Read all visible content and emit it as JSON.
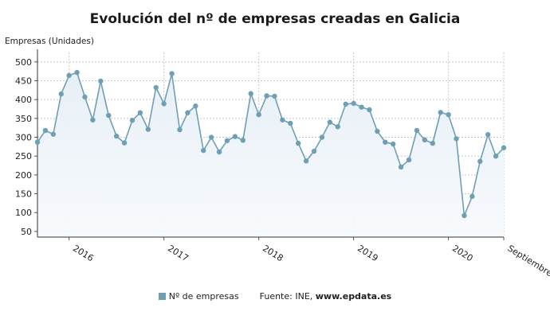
{
  "chart_data": {
    "type": "line",
    "title": "Evolución del nº de empresas creadas en Galicia",
    "ylabel": "Empresas (Unidades)",
    "xlabel": "",
    "ylim": [
      35,
      525
    ],
    "yticks": [
      50,
      100,
      150,
      200,
      250,
      300,
      350,
      400,
      450,
      500
    ],
    "x_tick_labels": [
      "2016",
      "2017",
      "2018",
      "2019",
      "2020",
      "Septiembre"
    ],
    "grid": true,
    "legend_position": "bottom",
    "series": [
      {
        "name": "Nº de empresas",
        "color": "#6f9fb5",
        "values": [
          287,
          318,
          308,
          415,
          464,
          472,
          407,
          346,
          449,
          358,
          303,
          285,
          345,
          365,
          321,
          432,
          389,
          469,
          320,
          365,
          383,
          265,
          300,
          261,
          291,
          302,
          292,
          416,
          360,
          410,
          409,
          346,
          337,
          284,
          237,
          263,
          300,
          340,
          328,
          388,
          390,
          380,
          373,
          316,
          287,
          282,
          221,
          240,
          318,
          293,
          284,
          366,
          360,
          296,
          92,
          143,
          236,
          307,
          250,
          272
        ]
      }
    ]
  },
  "legend": {
    "series_label": "Nº de empresas",
    "source_prefix": "Fuente: INE,",
    "source_site": "www.epdata.es"
  }
}
